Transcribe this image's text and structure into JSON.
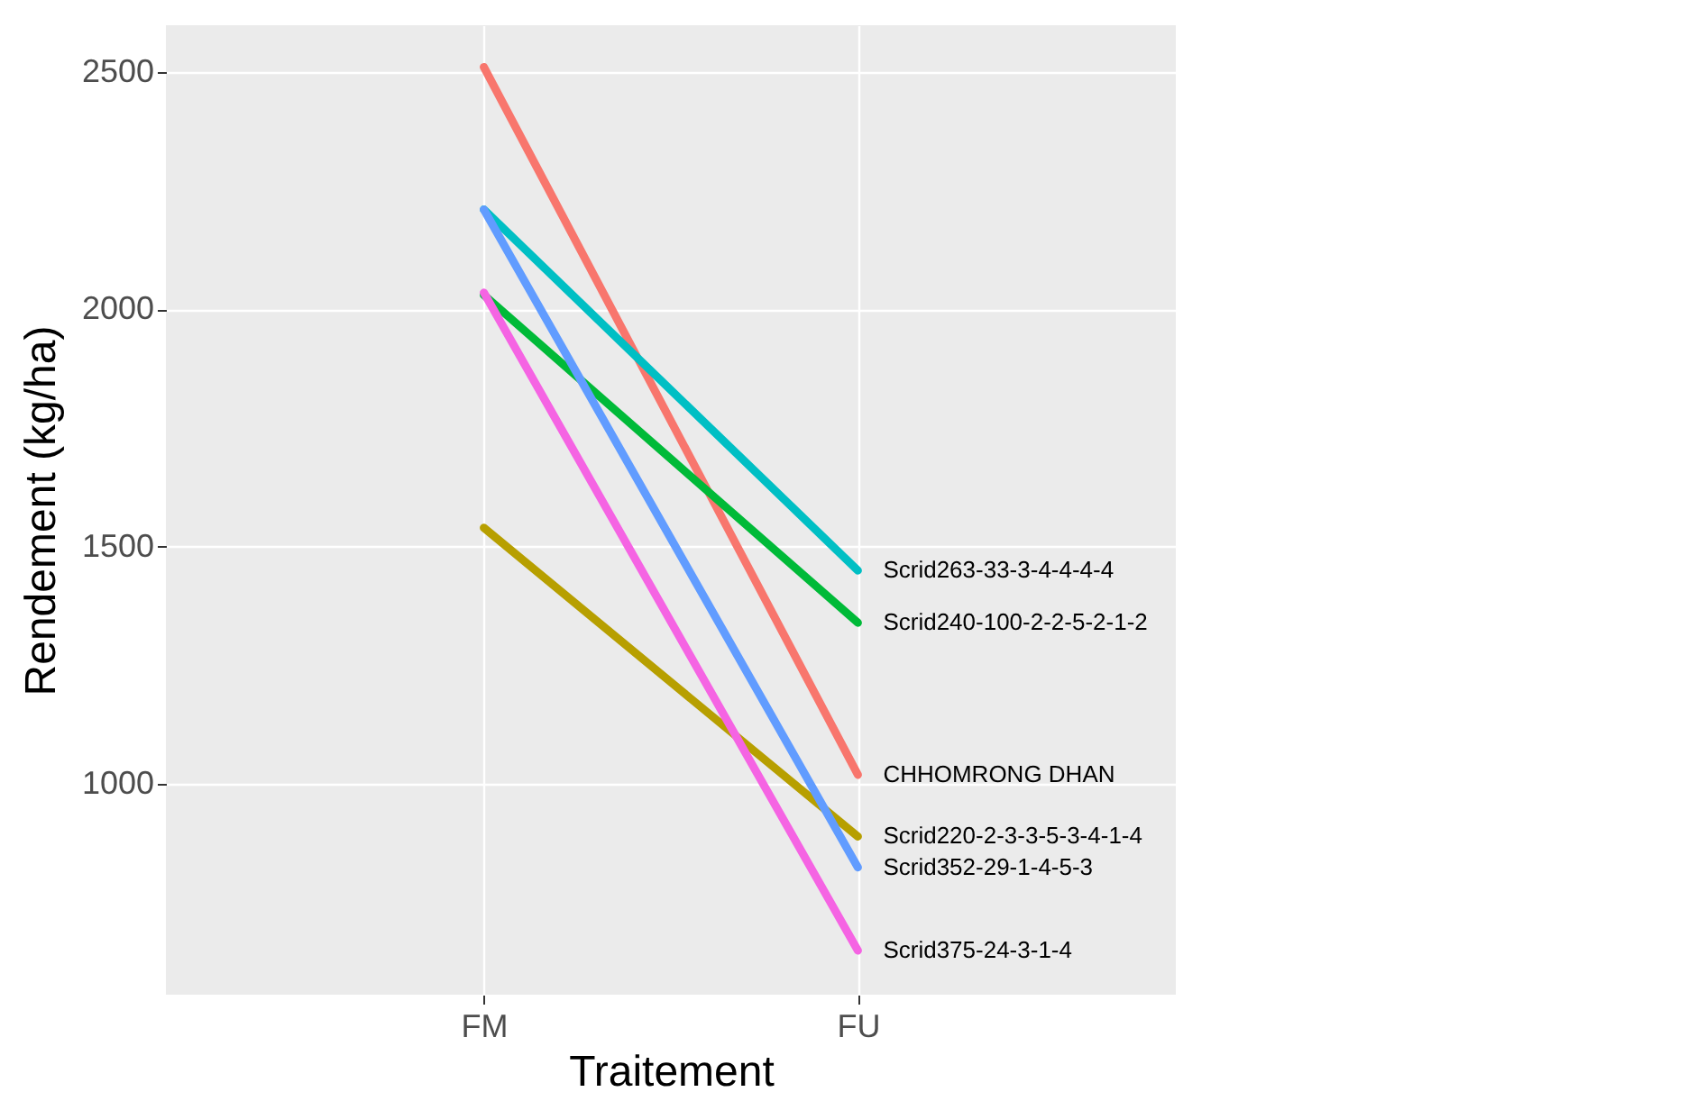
{
  "chart_data": {
    "type": "line",
    "xlabel": "Traitement",
    "ylabel": "Rendement (kg/ha)",
    "categories": [
      "FM",
      "FU"
    ],
    "series": [
      {
        "name": "CHHOMRONG DHAN",
        "color": "#f8766d",
        "values": [
          2510,
          1020
        ]
      },
      {
        "name": "Scrid220-2-3-3-5-3-4-1-4",
        "color": "#b79f00",
        "values": [
          1540,
          890
        ]
      },
      {
        "name": "Scrid240-100-2-2-5-2-1-2",
        "color": "#00ba38",
        "values": [
          2030,
          1340
        ]
      },
      {
        "name": "Scrid263-33-3-4-4-4-4",
        "color": "#00bfc4",
        "values": [
          2210,
          1450
        ]
      },
      {
        "name": "Scrid352-29-1-4-5-3",
        "color": "#619cff",
        "values": [
          2210,
          825
        ]
      },
      {
        "name": "Scrid375-24-3-1-4",
        "color": "#f564e3",
        "values": [
          2035,
          650
        ]
      }
    ],
    "ylim": [
      557,
      2598
    ],
    "yticks": [
      1000,
      1500,
      2000,
      2500
    ],
    "grid": true,
    "legend": false,
    "line_style": "solid",
    "marker": "none"
  }
}
